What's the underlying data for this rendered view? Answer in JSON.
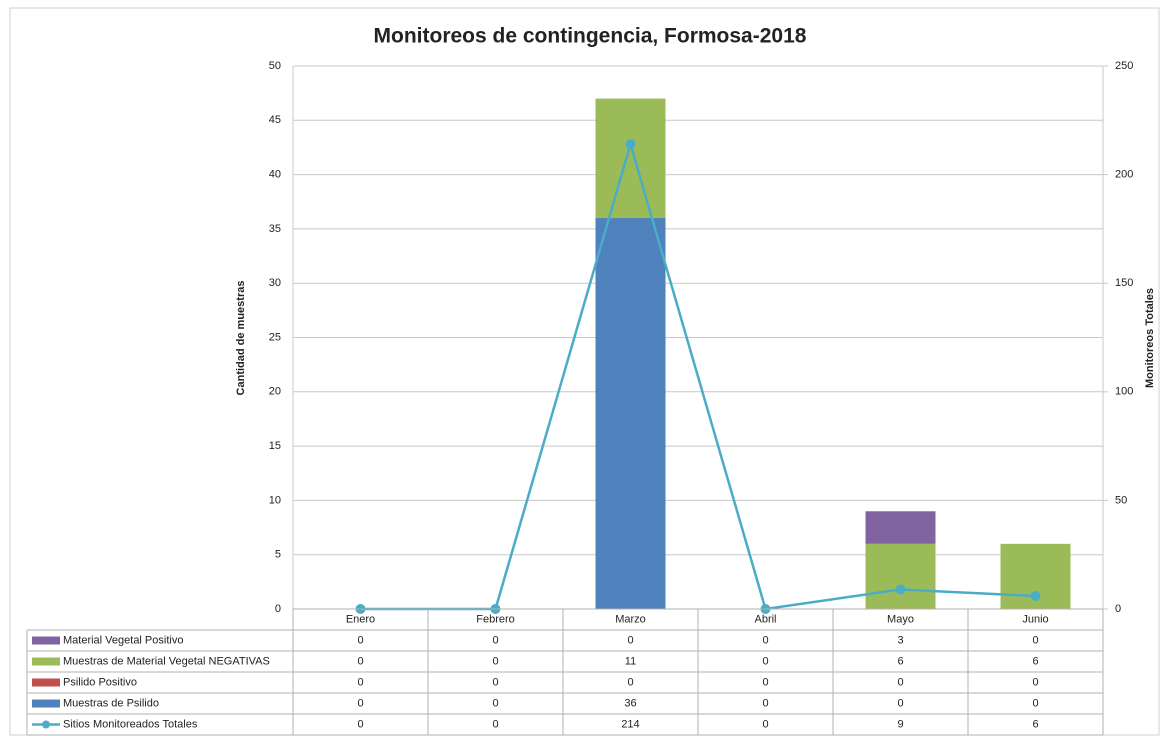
{
  "chart_data": {
    "type": "bar",
    "title": "Monitoreos de contingencia, Formosa-2018",
    "y_label": "Cantidad de muestras",
    "y2_label": "Monitoreos Totales",
    "categories": [
      "Enero",
      "Febrero",
      "Marzo",
      "Abril",
      "Mayo",
      "Junio"
    ],
    "stacked": true,
    "grid": true,
    "ylim": [
      0,
      50
    ],
    "yticks": [
      0,
      5,
      10,
      15,
      20,
      25,
      30,
      35,
      40,
      45,
      50
    ],
    "y2lim": [
      0,
      250
    ],
    "y2ticks": [
      0,
      50,
      100,
      150,
      200,
      250
    ],
    "series": [
      {
        "name": "Material Vegetal Positivo",
        "type": "bar",
        "color": "#8064a2",
        "values": [
          0,
          0,
          0,
          0,
          3,
          0
        ]
      },
      {
        "name": "Muestras de Material Vegetal NEGATIVAS",
        "type": "bar",
        "color": "#9bbb59",
        "values": [
          0,
          0,
          11,
          0,
          6,
          6
        ]
      },
      {
        "name": "Psilido  Positivo",
        "type": "bar",
        "color": "#c0504d",
        "values": [
          0,
          0,
          0,
          0,
          0,
          0
        ]
      },
      {
        "name": "Muestras de Psilido",
        "type": "bar",
        "color": "#4f81bd",
        "values": [
          0,
          0,
          36,
          0,
          0,
          0
        ]
      },
      {
        "name": "Sitios Monitoreados Totales",
        "type": "line",
        "axis": "y2",
        "color": "#4bacc6",
        "values": [
          0,
          0,
          214,
          0,
          9,
          6
        ]
      }
    ]
  }
}
